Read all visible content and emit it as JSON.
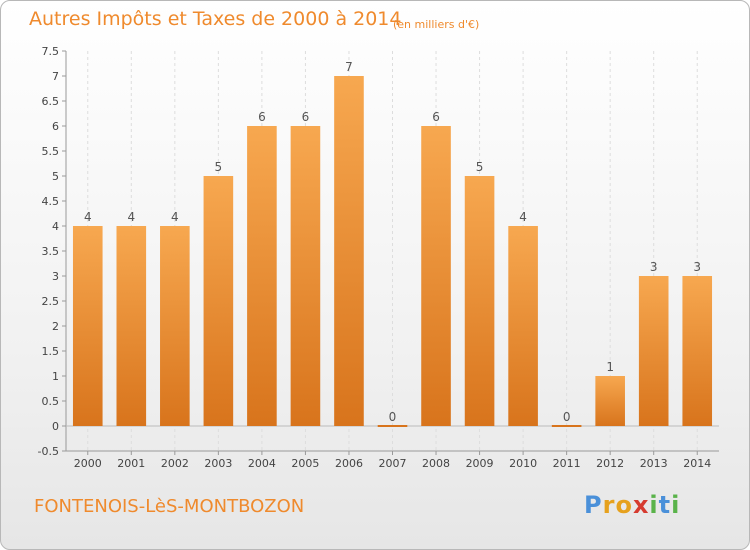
{
  "header": {
    "title": "Autres Impôts et Taxes de 2000 à 2014",
    "subtitle": "(en milliers d'€)"
  },
  "footer": {
    "commune": "FONTENOIS-LèS-MONTBOZON",
    "brand": "Proxiti"
  },
  "brand_letters": [
    {
      "ch": "P",
      "color": "#4a90d9"
    },
    {
      "ch": "r",
      "color": "#e6a11d"
    },
    {
      "ch": "o",
      "color": "#e6a11d"
    },
    {
      "ch": "x",
      "color": "#d63b2f"
    },
    {
      "ch": "i",
      "color": "#5ab34a"
    },
    {
      "ch": "t",
      "color": "#4a90d9"
    },
    {
      "ch": "i",
      "color": "#5ab34a"
    }
  ],
  "colors": {
    "bar_top": "#f7a850",
    "bar_bottom": "#d8741c",
    "accent": "#ef8a2d",
    "grid": "#dddddd"
  },
  "chart_data": {
    "type": "bar",
    "title": "Autres Impôts et Taxes de 2000 à 2014",
    "subtitle": "(en milliers d'€)",
    "categories": [
      "2000",
      "2001",
      "2002",
      "2003",
      "2004",
      "2005",
      "2006",
      "2007",
      "2008",
      "2009",
      "2010",
      "2011",
      "2012",
      "2013",
      "2014"
    ],
    "values": [
      4,
      4,
      4,
      5,
      6,
      6,
      7,
      0,
      6,
      5,
      4,
      0,
      1,
      3,
      3
    ],
    "data_labels": [
      "4",
      "4",
      "4",
      "5",
      "6",
      "6",
      "7",
      "0",
      "6",
      "5",
      "4",
      "0",
      "1",
      "3",
      "3"
    ],
    "yticks": [
      "-0.5",
      "0",
      "0.5",
      "1",
      "1.5",
      "2",
      "2.5",
      "3",
      "3.5",
      "4",
      "4.5",
      "5",
      "5.5",
      "6",
      "6.5",
      "7",
      "7.5"
    ],
    "ytick_values": [
      -0.5,
      0,
      0.5,
      1,
      1.5,
      2,
      2.5,
      3,
      3.5,
      4,
      4.5,
      5,
      5.5,
      6,
      6.5,
      7,
      7.5
    ],
    "ylim": [
      -0.5,
      7.5
    ],
    "xlabel": "",
    "ylabel": "",
    "grid": "vertical dashed"
  }
}
